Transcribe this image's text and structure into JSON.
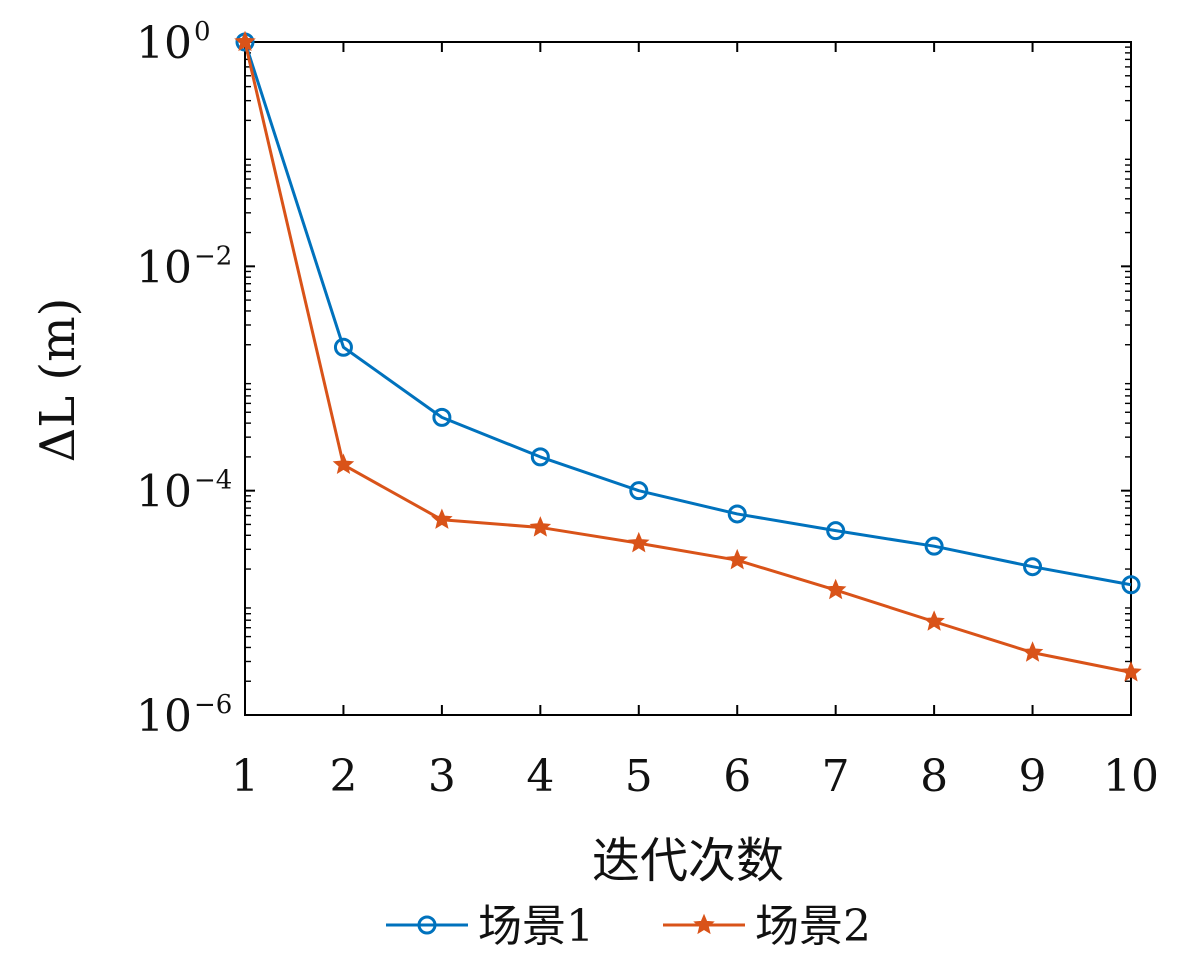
{
  "chart_data": {
    "type": "line",
    "title": "",
    "xlabel": "迭代次数",
    "ylabel": "ΔL (m)",
    "x": [
      1,
      2,
      3,
      4,
      5,
      6,
      7,
      8,
      9,
      10
    ],
    "xticks": [
      "1",
      "2",
      "3",
      "4",
      "5",
      "6",
      "7",
      "8",
      "9",
      "10"
    ],
    "yscale": "log",
    "ylim": [
      1e-06,
      1
    ],
    "yticks": [
      {
        "base": "10",
        "exp": "0",
        "value": 1
      },
      {
        "base": "10",
        "exp": "−2",
        "value": 0.01
      },
      {
        "base": "10",
        "exp": "−4",
        "value": 0.0001
      },
      {
        "base": "10",
        "exp": "−6",
        "value": 1e-06
      }
    ],
    "grid": false,
    "legend_position": "bottom",
    "series": [
      {
        "name": "场景1",
        "color": "#0072BD",
        "marker": "circle",
        "values": [
          1,
          0.0019,
          0.00045,
          0.0002,
          0.0001,
          6.2e-05,
          4.4e-05,
          3.2e-05,
          2.1e-05,
          1.45e-05
        ]
      },
      {
        "name": "场景2",
        "color": "#D95319",
        "marker": "star",
        "values": [
          1,
          0.00017,
          5.5e-05,
          4.7e-05,
          3.4e-05,
          2.4e-05,
          1.3e-05,
          6.8e-06,
          3.6e-06,
          2.4e-06
        ]
      }
    ]
  }
}
